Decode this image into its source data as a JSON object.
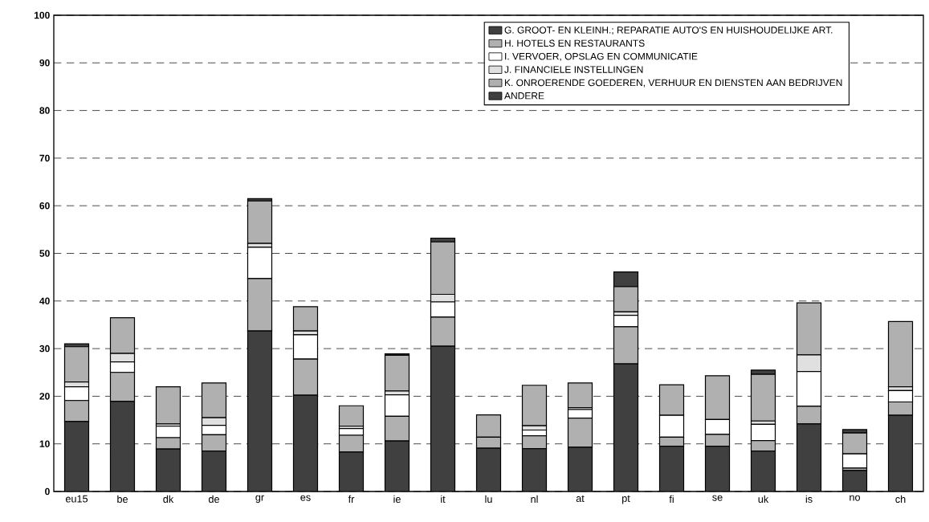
{
  "chart_data": {
    "type": "bar",
    "stacked": true,
    "categories": [
      "eu15",
      "be",
      "dk",
      "de",
      "gr",
      "es",
      "fr",
      "ie",
      "it",
      "lu",
      "nl",
      "at",
      "pt",
      "fi",
      "se",
      "uk",
      "is",
      "no",
      "ch"
    ],
    "series": [
      {
        "name": "G. GROOT- EN KLEINH.; REPARATIE AUTO'S EN HUISHOUDELIJKE ART.",
        "color": "#404040",
        "values": [
          14.7,
          18.9,
          8.9,
          8.5,
          33.7,
          20.2,
          8.3,
          10.6,
          30.5,
          9.1,
          9.0,
          9.3,
          26.8,
          9.5,
          9.5,
          8.5,
          14.2,
          4.4,
          16.0
        ]
      },
      {
        "name": "H. HOTELS EN RESTAURANTS",
        "color": "#b0b0b0",
        "values": [
          4.4,
          6.1,
          2.4,
          3.4,
          11.0,
          7.6,
          3.5,
          5.2,
          6.1,
          2.3,
          2.7,
          6.1,
          7.8,
          1.9,
          2.5,
          2.2,
          3.7,
          0.5,
          2.8
        ]
      },
      {
        "name": "I. VERVOER, OPSLAG EN COMMUNICATIE",
        "color": "#ffffff",
        "values": [
          2.9,
          2.2,
          2.4,
          2.0,
          6.6,
          5.1,
          1.4,
          4.5,
          3.2,
          0,
          1.2,
          1.8,
          2.4,
          4.6,
          3.1,
          3.4,
          7.3,
          3.0,
          2.4
        ]
      },
      {
        "name": "J. FINANCIELE INSTELLINGEN",
        "color": "#e0e0e0",
        "values": [
          1.0,
          1.8,
          0.5,
          1.6,
          0.8,
          0.8,
          0.5,
          0.8,
          1.6,
          0,
          0.9,
          0.4,
          0.7,
          0,
          0,
          0.7,
          3.5,
          0,
          0.8
        ]
      },
      {
        "name": "K. ONROERENDE GOEDEREN, VERHUUR EN DIENSTEN AAN BEDRIJVEN",
        "color": "#b0b0b0",
        "values": [
          7.4,
          7.5,
          7.8,
          7.3,
          8.9,
          5.1,
          4.3,
          7.5,
          11.0,
          4.7,
          8.5,
          5.2,
          5.3,
          6.4,
          9.2,
          9.8,
          10.9,
          4.4,
          13.7
        ]
      },
      {
        "name": "ANDERE",
        "color": "#404040",
        "values": [
          0.6,
          0,
          0,
          0,
          0.5,
          0,
          0,
          0.3,
          0.8,
          0,
          0,
          0,
          3.1,
          0,
          0,
          0.9,
          0,
          0.7,
          0
        ]
      }
    ],
    "ylim": [
      0,
      100
    ],
    "yticks": [
      0,
      10,
      20,
      30,
      40,
      50,
      60,
      70,
      80,
      90,
      100
    ],
    "grid": "y",
    "legend": "top right"
  }
}
